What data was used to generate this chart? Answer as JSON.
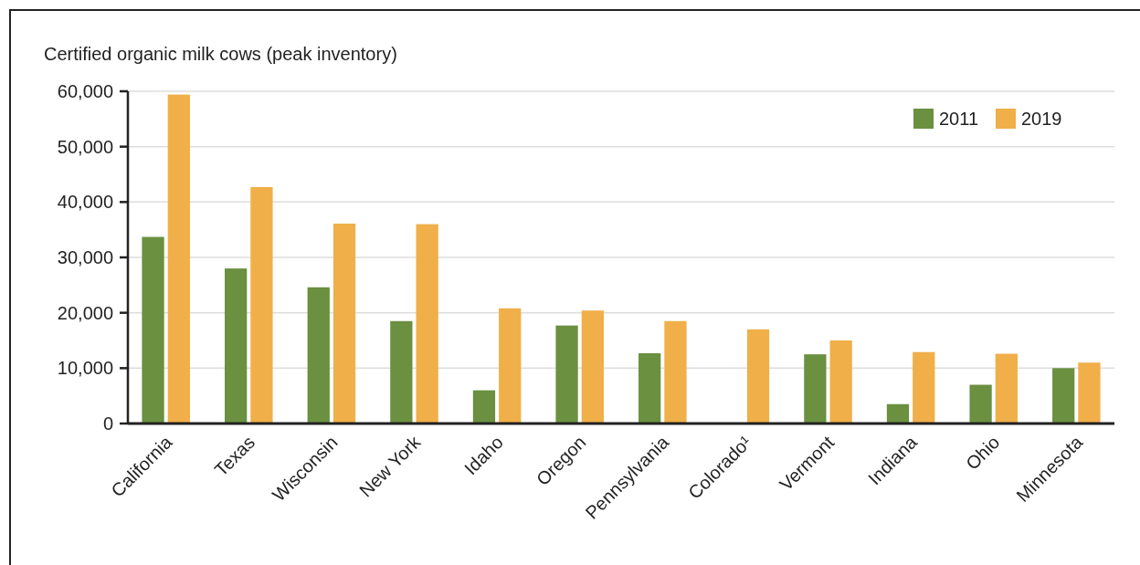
{
  "chart_data": {
    "type": "bar",
    "ylabel": "Certified organic milk cows (peak inventory)",
    "categories": [
      "California",
      "Texas",
      "Wisconsin",
      "New York",
      "Idaho",
      "Oregon",
      "Pennsylvania",
      "Colorado¹",
      "Vermont",
      "Indiana",
      "Ohio",
      "Minnesota"
    ],
    "series": [
      {
        "name": "2011",
        "color": "#6a9040",
        "values": [
          33700,
          28000,
          24600,
          18500,
          6000,
          17700,
          12700,
          null,
          12500,
          3500,
          7000,
          10000
        ]
      },
      {
        "name": "2019",
        "color": "#f0af48",
        "values": [
          59400,
          42700,
          36100,
          36000,
          20800,
          20400,
          18500,
          17000,
          15000,
          12900,
          12600,
          11000
        ]
      }
    ],
    "ylim": [
      0,
      60000
    ],
    "yticks": [
      {
        "value": 0,
        "label": "0"
      },
      {
        "value": 10000,
        "label": "10,000"
      },
      {
        "value": 20000,
        "label": "20,000"
      },
      {
        "value": 30000,
        "label": "30,000"
      },
      {
        "value": 40000,
        "label": "40,000"
      },
      {
        "value": 50000,
        "label": "50,000"
      },
      {
        "value": 60000,
        "label": "60,000"
      }
    ],
    "grid": "y",
    "legend": "top right"
  }
}
